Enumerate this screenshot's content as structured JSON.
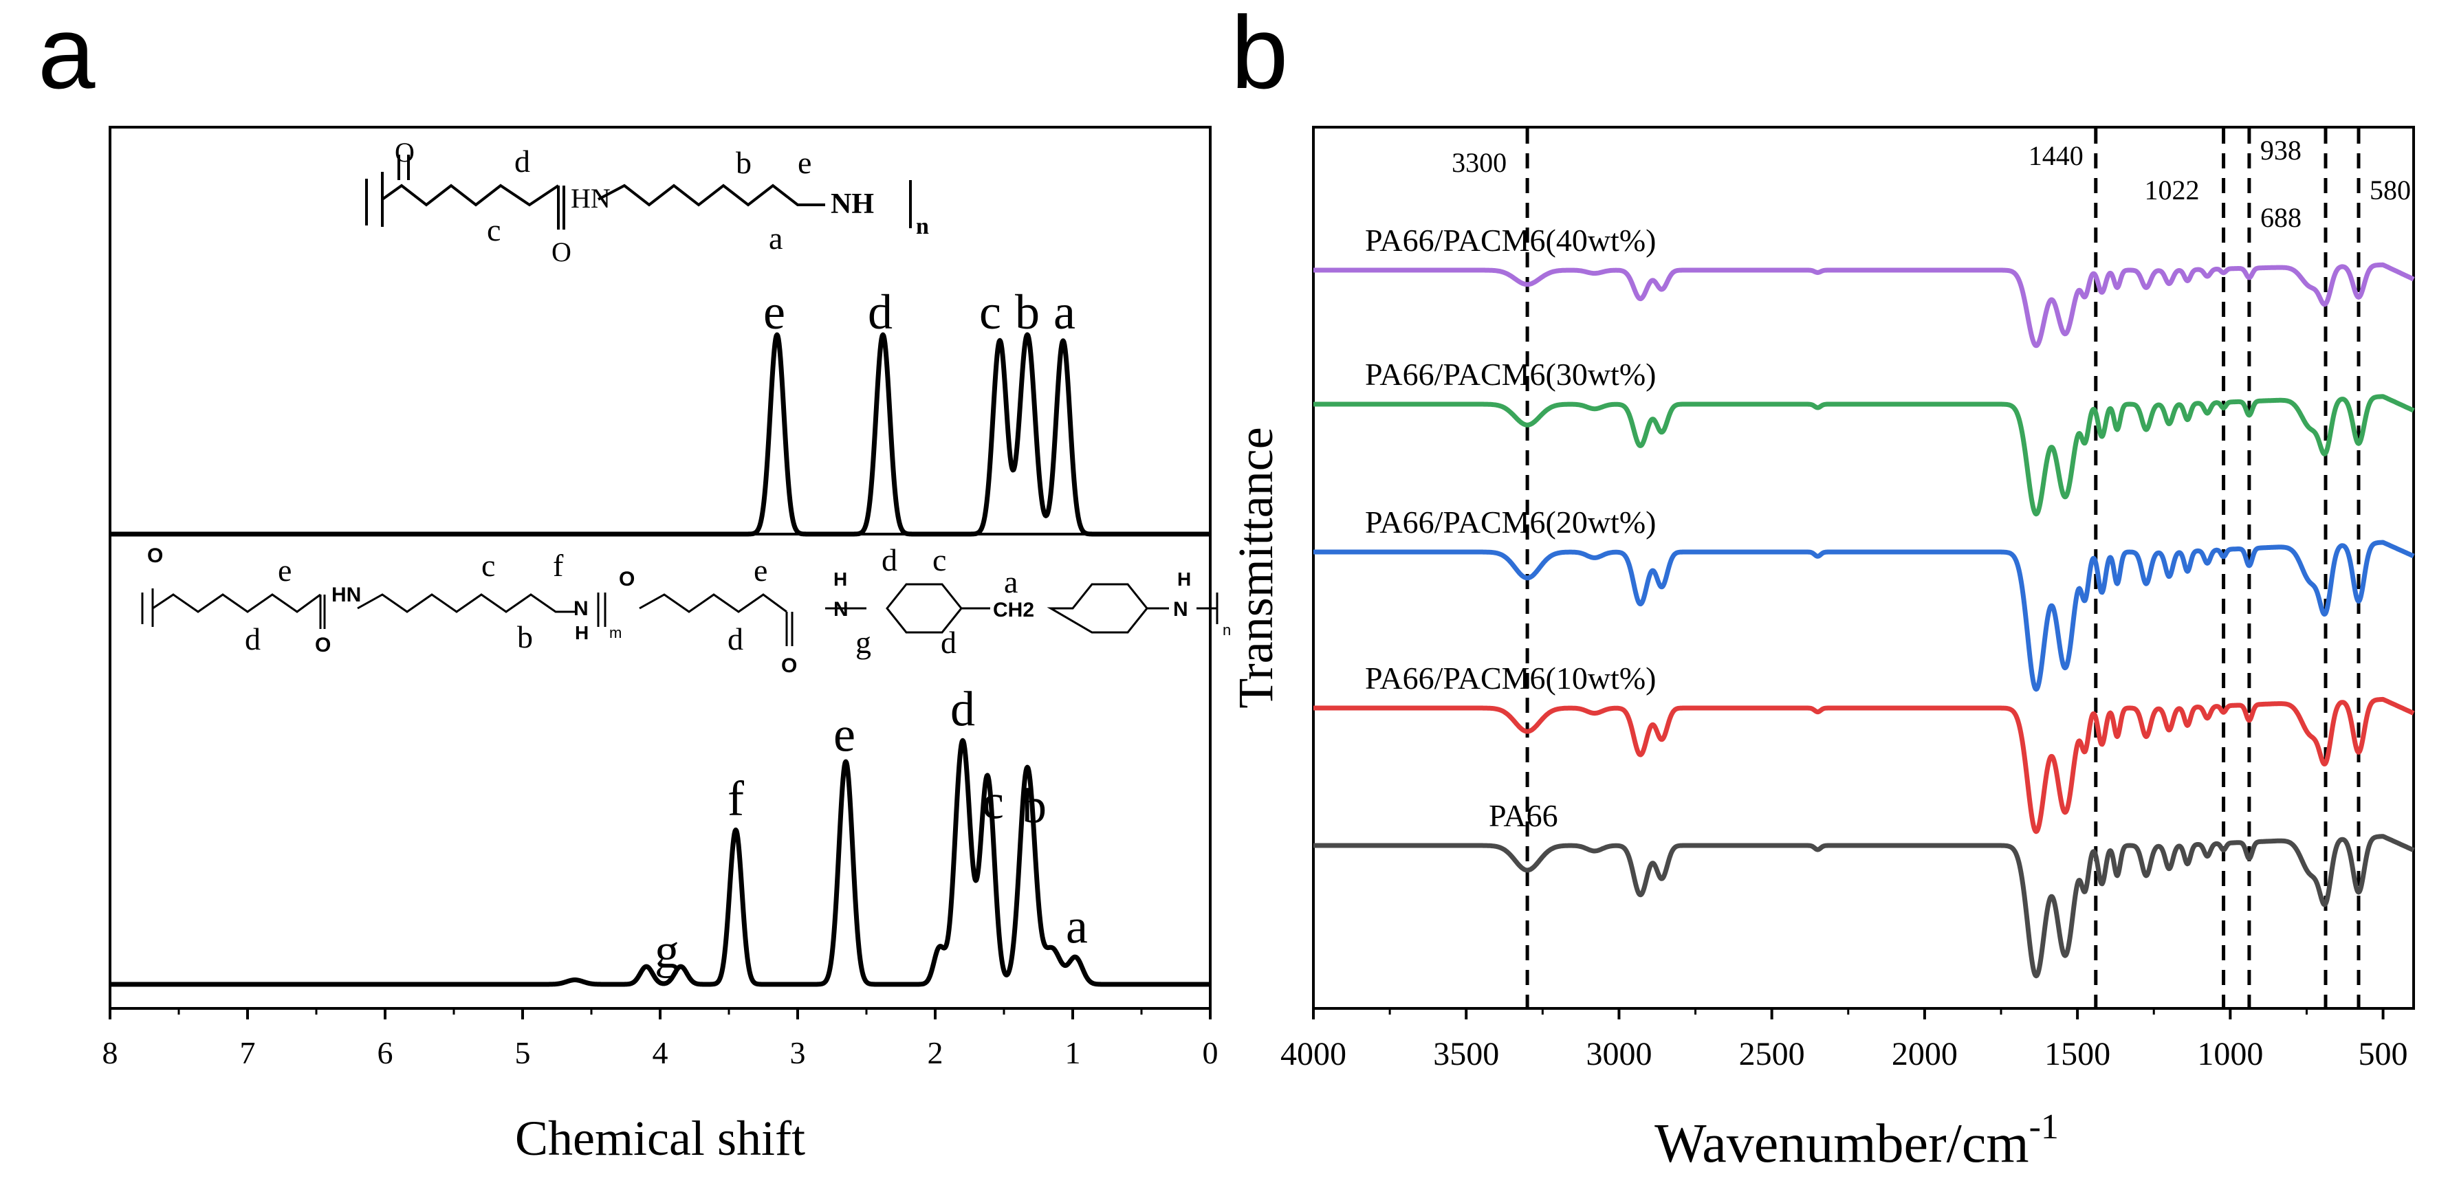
{
  "chart_data": [
    {
      "panel": "a",
      "type": "line",
      "title": "",
      "xlabel": "Chemical shift",
      "ylabel": "",
      "xlim": [
        8,
        0
      ],
      "x_reversed": true,
      "xticks": [
        8,
        7,
        6,
        5,
        4,
        3,
        2,
        1,
        0
      ],
      "grid": false,
      "series": [
        {
          "name": "top spectrum",
          "baseline": 0,
          "peaks": [
            {
              "x": 3.15,
              "h": 1.0,
              "w": 0.05
            },
            {
              "x": 2.38,
              "h": 1.0,
              "w": 0.05
            },
            {
              "x": 1.53,
              "h": 0.97,
              "w": 0.05
            },
            {
              "x": 1.33,
              "h": 1.0,
              "w": 0.055
            },
            {
              "x": 1.07,
              "h": 0.97,
              "w": 0.05
            }
          ],
          "peak_labels": [
            {
              "label": "e",
              "x": 3.17
            },
            {
              "label": "d",
              "x": 2.4
            },
            {
              "label": "c",
              "x": 1.6
            },
            {
              "label": "b",
              "x": 1.33
            },
            {
              "label": "a",
              "x": 1.06
            }
          ]
        },
        {
          "name": "bottom spectrum",
          "baseline": 0,
          "peaks": [
            {
              "x": 4.62,
              "h": 0.015,
              "w": 0.06
            },
            {
              "x": 4.1,
              "h": 0.06,
              "w": 0.045
            },
            {
              "x": 3.85,
              "h": 0.06,
              "w": 0.045
            },
            {
              "x": 3.45,
              "h": 0.52,
              "w": 0.045
            },
            {
              "x": 2.65,
              "h": 0.75,
              "w": 0.05
            },
            {
              "x": 1.97,
              "h": 0.12,
              "w": 0.04
            },
            {
              "x": 1.8,
              "h": 0.82,
              "w": 0.055
            },
            {
              "x": 1.62,
              "h": 0.7,
              "w": 0.05
            },
            {
              "x": 1.33,
              "h": 0.73,
              "w": 0.055
            },
            {
              "x": 1.15,
              "h": 0.12,
              "w": 0.06
            },
            {
              "x": 0.98,
              "h": 0.09,
              "w": 0.05
            }
          ],
          "peak_labels": [
            {
              "label": "g",
              "x": 3.95
            },
            {
              "label": "f",
              "x": 3.45
            },
            {
              "label": "e",
              "x": 2.66
            },
            {
              "label": "d",
              "x": 1.8
            },
            {
              "label": "c",
              "x": 1.58
            },
            {
              "label": "b",
              "x": 1.28
            },
            {
              "label": "a",
              "x": 0.97
            }
          ]
        }
      ],
      "structure_top": {
        "atoms": [
          "O",
          "d",
          "c",
          "O",
          "HN",
          "b",
          "a",
          "e",
          "NH",
          "n"
        ]
      },
      "structure_bottom": {
        "atoms": [
          "O",
          "e",
          "d",
          "O",
          "HN",
          "c",
          "b",
          "f",
          "N",
          "H",
          "m",
          "O",
          "e",
          "d",
          "O",
          "H",
          "N",
          "g",
          "d",
          "c",
          "d",
          "a",
          "CH2",
          "H",
          "N",
          "n"
        ]
      }
    },
    {
      "panel": "b",
      "type": "line",
      "title": "",
      "xlabel": "Wavenumber/cm",
      "xlabel_superscript": "-1",
      "ylabel": "Transmittance",
      "xlim": [
        4000,
        400
      ],
      "x_reversed": true,
      "xticks": [
        4000,
        3500,
        3000,
        2500,
        2000,
        1500,
        1000,
        500
      ],
      "grid": false,
      "reference_lines": [
        {
          "x": 3300,
          "label": "3300"
        },
        {
          "x": 1440,
          "label": "1440"
        },
        {
          "x": 1022,
          "label": "1022"
        },
        {
          "x": 938,
          "label": "938"
        },
        {
          "x": 688,
          "label": "688"
        },
        {
          "x": 580,
          "label": "580"
        }
      ],
      "series": [
        {
          "name": "PA66/PACM6(40wt%)",
          "color": "#a86fdb",
          "offset": 4,
          "scale": 0.55
        },
        {
          "name": "PA66/PACM6(30wt%)",
          "color": "#3aa55a",
          "offset": 3,
          "scale": 0.8
        },
        {
          "name": "PA66/PACM6(20wt%)",
          "color": "#2f6fd6",
          "offset": 2,
          "scale": 1.0
        },
        {
          "name": "PA66/PACM6(10wt%)",
          "color": "#e23b3b",
          "offset": 1,
          "scale": 0.9
        },
        {
          "name": "PA66",
          "color": "#4a4a4a",
          "offset": 0,
          "scale": 0.95
        }
      ],
      "absorption_bands": [
        {
          "x": 3300,
          "d": 0.18,
          "w": 40
        },
        {
          "x": 3080,
          "d": 0.04,
          "w": 25
        },
        {
          "x": 2930,
          "d": 0.36,
          "w": 22
        },
        {
          "x": 2860,
          "d": 0.24,
          "w": 18
        },
        {
          "x": 2350,
          "d": 0.03,
          "w": 10
        },
        {
          "x": 1635,
          "d": 0.95,
          "w": 28
        },
        {
          "x": 1540,
          "d": 0.8,
          "w": 26
        },
        {
          "x": 1475,
          "d": 0.3,
          "w": 12
        },
        {
          "x": 1420,
          "d": 0.28,
          "w": 12
        },
        {
          "x": 1370,
          "d": 0.22,
          "w": 10
        },
        {
          "x": 1275,
          "d": 0.22,
          "w": 14
        },
        {
          "x": 1200,
          "d": 0.17,
          "w": 12
        },
        {
          "x": 1140,
          "d": 0.14,
          "w": 10
        },
        {
          "x": 1075,
          "d": 0.09,
          "w": 10
        },
        {
          "x": 1022,
          "d": 0.05,
          "w": 8
        },
        {
          "x": 938,
          "d": 0.12,
          "w": 10
        },
        {
          "x": 735,
          "d": 0.25,
          "w": 30
        },
        {
          "x": 688,
          "d": 0.4,
          "w": 18
        },
        {
          "x": 580,
          "d": 0.4,
          "w": 18
        }
      ]
    }
  ],
  "labels": {
    "panel_a": "a",
    "panel_b": "b"
  }
}
